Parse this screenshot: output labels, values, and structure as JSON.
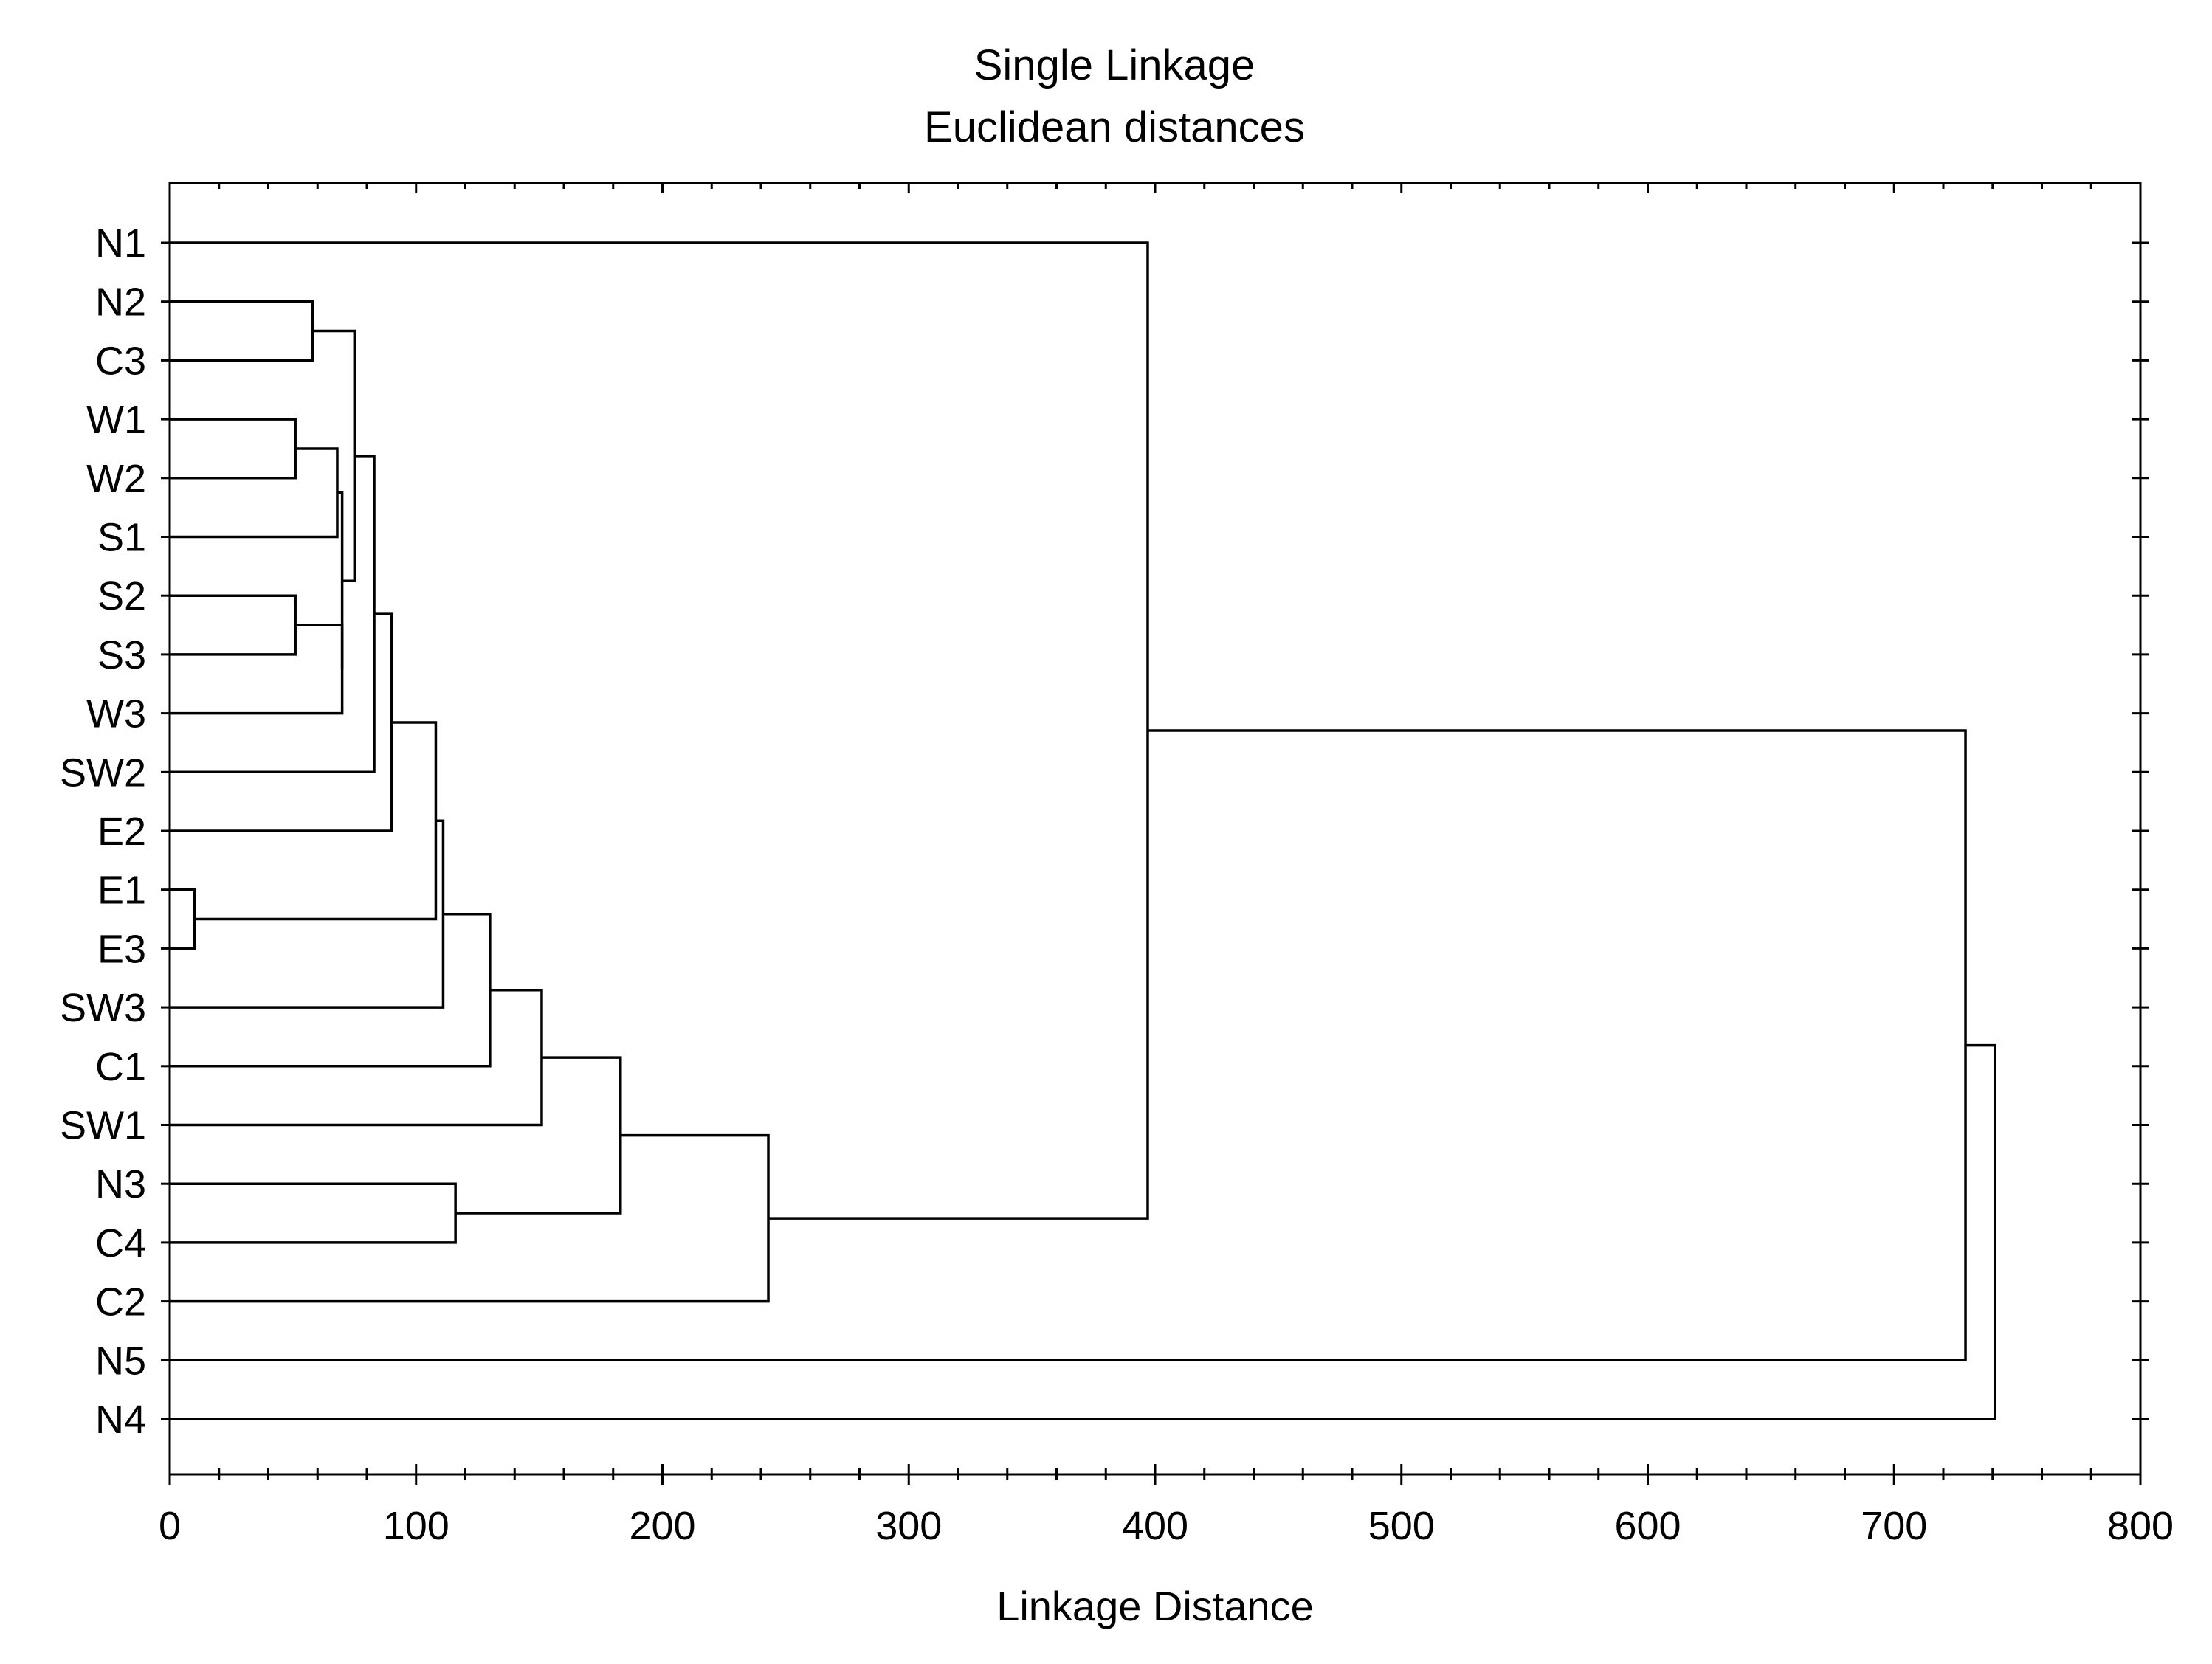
{
  "chart_data": {
    "type": "dendrogram",
    "title": "Single Linkage",
    "subtitle": "Euclidean distances",
    "xlabel": "Linkage Distance",
    "xlim": [
      0,
      800
    ],
    "x_ticks": [
      0,
      100,
      200,
      300,
      400,
      500,
      600,
      700,
      800
    ],
    "leaves": [
      "N1",
      "N2",
      "C3",
      "W1",
      "W2",
      "S1",
      "S2",
      "S3",
      "W3",
      "SW2",
      "E2",
      "E1",
      "E3",
      "SW3",
      "C1",
      "SW1",
      "N3",
      "C4",
      "C2",
      "N5",
      "N4"
    ],
    "merges": [
      {
        "id": "m1",
        "children": [
          "E1",
          "E3"
        ],
        "distance": 10
      },
      {
        "id": "m2",
        "children": [
          "W1",
          "W2"
        ],
        "distance": 51
      },
      {
        "id": "m3",
        "children": [
          "S2",
          "S3"
        ],
        "distance": 51
      },
      {
        "id": "m4",
        "children": [
          "N2",
          "C3"
        ],
        "distance": 58
      },
      {
        "id": "m5",
        "children": [
          "m2",
          "S1"
        ],
        "distance": 68
      },
      {
        "id": "m6",
        "children": [
          "m3",
          "W3"
        ],
        "distance": 70
      },
      {
        "id": "m7",
        "children": [
          "m5",
          "m6"
        ],
        "distance": 70
      },
      {
        "id": "m8",
        "children": [
          "m4",
          "m7"
        ],
        "distance": 75
      },
      {
        "id": "m9",
        "children": [
          "m8",
          "SW2"
        ],
        "distance": 83
      },
      {
        "id": "m10",
        "children": [
          "m9",
          "E2"
        ],
        "distance": 90
      },
      {
        "id": "m11",
        "children": [
          "m10",
          "m1"
        ],
        "distance": 108
      },
      {
        "id": "m12",
        "children": [
          "m11",
          "SW3"
        ],
        "distance": 111
      },
      {
        "id": "m13",
        "children": [
          "m12",
          "C1"
        ],
        "distance": 130
      },
      {
        "id": "m14",
        "children": [
          "m13",
          "SW1"
        ],
        "distance": 151
      },
      {
        "id": "m15",
        "children": [
          "N3",
          "C4"
        ],
        "distance": 116
      },
      {
        "id": "m16",
        "children": [
          "m14",
          "m15"
        ],
        "distance": 183
      },
      {
        "id": "m17",
        "children": [
          "m16",
          "C2"
        ],
        "distance": 243
      },
      {
        "id": "m18",
        "children": [
          "N1",
          "m17"
        ],
        "distance": 397
      },
      {
        "id": "m19",
        "children": [
          "m18",
          "N5"
        ],
        "distance": 729
      },
      {
        "id": "m20",
        "children": [
          "m19",
          "N4"
        ],
        "distance": 741
      }
    ],
    "grid": false,
    "legend": "none",
    "line_color": "#000000"
  }
}
